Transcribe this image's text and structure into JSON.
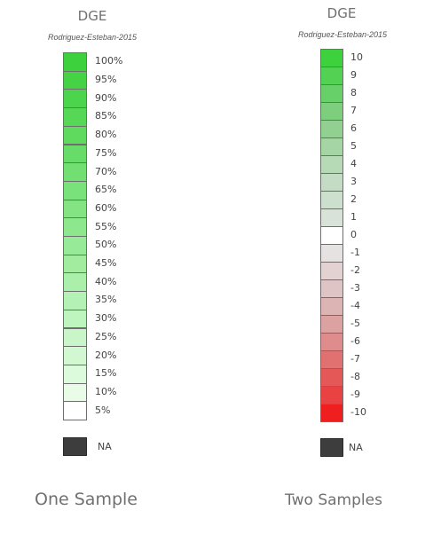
{
  "one_sample": {
    "title": "DGE",
    "subtitle": "Rodriguez-Esteban-2015",
    "steps": [
      {
        "label": "100%",
        "color": "#3dd13d"
      },
      {
        "label": "95%",
        "color": "#45d245"
      },
      {
        "label": "90%",
        "color": "#4dd44d"
      },
      {
        "label": "85%",
        "color": "#56d756"
      },
      {
        "label": "80%",
        "color": "#5fda5f"
      },
      {
        "label": "75%",
        "color": "#68dc68"
      },
      {
        "label": "70%",
        "color": "#71df71"
      },
      {
        "label": "65%",
        "color": "#7ae27a"
      },
      {
        "label": "60%",
        "color": "#84e484"
      },
      {
        "label": "55%",
        "color": "#8de78d"
      },
      {
        "label": "50%",
        "color": "#97ea97"
      },
      {
        "label": "45%",
        "color": "#a1ec9f"
      },
      {
        "label": "40%",
        "color": "#aaefaa"
      },
      {
        "label": "35%",
        "color": "#b4f1b4"
      },
      {
        "label": "30%",
        "color": "#bef4be"
      },
      {
        "label": "25%",
        "color": "#c8f6c8"
      },
      {
        "label": "20%",
        "color": "#d2f8d2"
      },
      {
        "label": "15%",
        "color": "#dcfadc"
      },
      {
        "label": "10%",
        "color": "#e8fce8"
      },
      {
        "label": "5%",
        "color": "#ffffff"
      }
    ],
    "na_label": "NA",
    "na_color": "#3d3d3d",
    "caption": "One Sample"
  },
  "two_samples": {
    "title": "DGE",
    "subtitle": "Rodriguez-Esteban-2015",
    "steps": [
      {
        "label": "10",
        "color": "#3dd13d"
      },
      {
        "label": "9",
        "color": "#52d152"
      },
      {
        "label": "8",
        "color": "#68d068"
      },
      {
        "label": "7",
        "color": "#7dcf7d"
      },
      {
        "label": "6",
        "color": "#92d092"
      },
      {
        "label": "5",
        "color": "#a5d4a5"
      },
      {
        "label": "4",
        "color": "#b6d9b6"
      },
      {
        "label": "3",
        "color": "#c3dcc3"
      },
      {
        "label": "2",
        "color": "#cde0cd"
      },
      {
        "label": "1",
        "color": "#d8e2d8"
      },
      {
        "label": "0",
        "color": "#ffffff"
      },
      {
        "label": "-1",
        "color": "#e7e2e2"
      },
      {
        "label": "-2",
        "color": "#e2d2d2"
      },
      {
        "label": "-3",
        "color": "#dec4c4"
      },
      {
        "label": "-4",
        "color": "#dcb4b4"
      },
      {
        "label": "-5",
        "color": "#dca2a2"
      },
      {
        "label": "-6",
        "color": "#de8c8c"
      },
      {
        "label": "-7",
        "color": "#e17070"
      },
      {
        "label": "-8",
        "color": "#e45858"
      },
      {
        "label": "-9",
        "color": "#e94242"
      },
      {
        "label": "-10",
        "color": "#f01f1f"
      }
    ],
    "na_label": "NA",
    "na_color": "#3d3d3d",
    "caption": "Two Samples"
  }
}
